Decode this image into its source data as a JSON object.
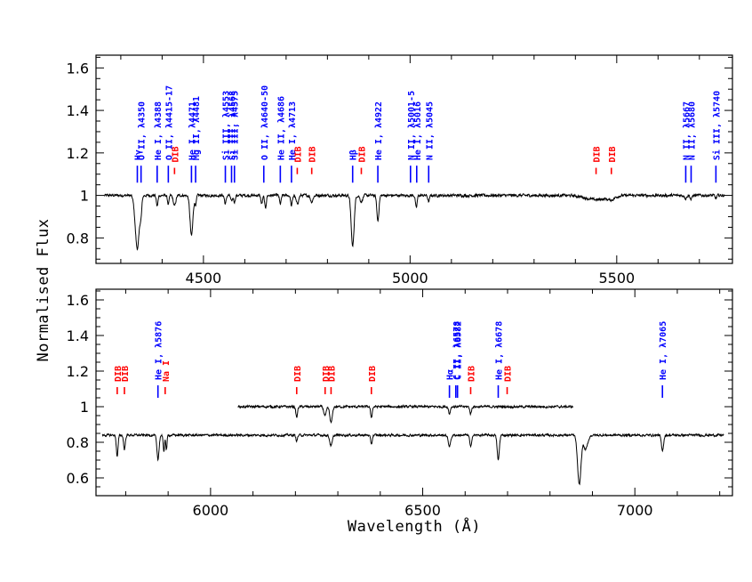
{
  "chart_data": {
    "type": "line",
    "xlabel": "Wavelength (Å)",
    "ylabel": "Normalised Flux",
    "colors": {
      "spectrum": "#000000",
      "stellar_lines": "#0000ff",
      "dib": "#ff0000"
    },
    "panels": [
      {
        "name": "top",
        "xlim": [
          4240,
          5780
        ],
        "ylim": [
          0.68,
          1.66
        ],
        "xticks": [
          4500,
          5000,
          5500
        ],
        "xtick_labels": [
          "4500",
          "5000",
          "5500"
        ],
        "yticks": [
          0.8,
          1,
          1.2,
          1.4,
          1.6
        ],
        "ytick_labels": [
          "0.8",
          "1",
          "1.2",
          "1.4",
          "1.6"
        ],
        "baseline": 1.0,
        "absorption_lines": [
          {
            "x": 4340,
            "depth": 0.25,
            "width": 5
          },
          {
            "x": 4349,
            "depth": 0.06,
            "width": 2
          },
          {
            "x": 4388,
            "depth": 0.05,
            "width": 2
          },
          {
            "x": 4415,
            "depth": 0.04,
            "width": 2
          },
          {
            "x": 4430,
            "depth": 0.05,
            "width": 3
          },
          {
            "x": 4471,
            "depth": 0.19,
            "width": 3.5
          },
          {
            "x": 4481,
            "depth": 0.04,
            "width": 2
          },
          {
            "x": 4553,
            "depth": 0.04,
            "width": 2
          },
          {
            "x": 4568,
            "depth": 0.03,
            "width": 2
          },
          {
            "x": 4575,
            "depth": 0.03,
            "width": 2
          },
          {
            "x": 4641,
            "depth": 0.04,
            "width": 2
          },
          {
            "x": 4650,
            "depth": 0.06,
            "width": 2
          },
          {
            "x": 4686,
            "depth": 0.04,
            "width": 2
          },
          {
            "x": 4713,
            "depth": 0.05,
            "width": 2
          },
          {
            "x": 4727,
            "depth": 0.04,
            "width": 3
          },
          {
            "x": 4762,
            "depth": 0.03,
            "width": 3
          },
          {
            "x": 4861,
            "depth": 0.24,
            "width": 3.5
          },
          {
            "x": 4882,
            "depth": 0.03,
            "width": 3
          },
          {
            "x": 4922,
            "depth": 0.12,
            "width": 2.5
          },
          {
            "x": 5015,
            "depth": 0.06,
            "width": 2
          },
          {
            "x": 5045,
            "depth": 0.03,
            "width": 2
          },
          {
            "x": 5450,
            "depth": 0.02,
            "width": 25
          },
          {
            "x": 5487,
            "depth": 0.015,
            "width": 8
          },
          {
            "x": 5667,
            "depth": 0.015,
            "width": 2
          },
          {
            "x": 5680,
            "depth": 0.02,
            "width": 2
          },
          {
            "x": 5740,
            "depth": 0.015,
            "width": 2
          }
        ]
      },
      {
        "name": "bottom",
        "xlim": [
          5730,
          7230
        ],
        "ylim": [
          0.5,
          1.66
        ],
        "xticks": [
          6000,
          6500,
          7000
        ],
        "xtick_labels": [
          "6000",
          "6500",
          "7000"
        ],
        "yticks": [
          0.6,
          0.8,
          1,
          1.2,
          1.4,
          1.6
        ],
        "ytick_labels": [
          "0.6",
          "0.8",
          "1",
          "1.2",
          "1.4",
          "1.6"
        ],
        "spectra": [
          {
            "name": "offset-high",
            "x_range": [
              6065,
              6855
            ],
            "baseline": 1.0,
            "absorption_lines": [
              {
                "x": 6203,
                "depth": 0.06,
                "width": 2
              },
              {
                "x": 6270,
                "depth": 0.05,
                "width": 3
              },
              {
                "x": 6284,
                "depth": 0.09,
                "width": 3
              },
              {
                "x": 6379,
                "depth": 0.06,
                "width": 2
              },
              {
                "x": 6563,
                "depth": 0.04,
                "width": 2
              },
              {
                "x": 6613,
                "depth": 0.04,
                "width": 2
              }
            ]
          },
          {
            "name": "primary",
            "x_range": [
              5745,
              7210
            ],
            "baseline": 0.84,
            "absorption_lines": [
              {
                "x": 5780,
                "depth": 0.12,
                "width": 2
              },
              {
                "x": 5797,
                "depth": 0.08,
                "width": 2
              },
              {
                "x": 5876,
                "depth": 0.14,
                "width": 2.5
              },
              {
                "x": 5890,
                "depth": 0.1,
                "width": 1.5
              },
              {
                "x": 5896,
                "depth": 0.08,
                "width": 1.5
              },
              {
                "x": 6203,
                "depth": 0.03,
                "width": 2
              },
              {
                "x": 6284,
                "depth": 0.06,
                "width": 3
              },
              {
                "x": 6379,
                "depth": 0.05,
                "width": 2
              },
              {
                "x": 6563,
                "depth": 0.06,
                "width": 3
              },
              {
                "x": 6613,
                "depth": 0.07,
                "width": 2
              },
              {
                "x": 6678,
                "depth": 0.14,
                "width": 2.5
              },
              {
                "x": 6869,
                "depth": 0.28,
                "width": 4
              },
              {
                "x": 6884,
                "depth": 0.08,
                "width": 5
              },
              {
                "x": 7065,
                "depth": 0.09,
                "width": 2.5
              }
            ]
          }
        ]
      }
    ],
    "annotations": [
      {
        "panel": 0,
        "x": 4340,
        "tick": [
          1.14,
          1.06
        ],
        "label": "Hγ",
        "color": "blue"
      },
      {
        "panel": 0,
        "x": 4349,
        "tick": [
          1.14,
          1.06
        ],
        "label": "O II, λ4350",
        "color": "blue"
      },
      {
        "panel": 0,
        "x": 4388,
        "tick": [
          1.14,
          1.06
        ],
        "label": "He I, λ4388",
        "color": "blue"
      },
      {
        "panel": 0,
        "x": 4415,
        "tick": [
          1.14,
          1.06
        ],
        "label": "O II, λ4415-17",
        "color": "blue"
      },
      {
        "panel": 0,
        "x": 4430,
        "tick": [
          1.13,
          1.1
        ],
        "label": "DIB",
        "color": "red"
      },
      {
        "panel": 0,
        "x": 4471,
        "tick": [
          1.14,
          1.06
        ],
        "label": "He I, λ4471",
        "color": "blue"
      },
      {
        "panel": 0,
        "x": 4481,
        "tick": [
          1.14,
          1.06
        ],
        "label": "Mg II, λ4481",
        "color": "blue"
      },
      {
        "panel": 0,
        "x": 4553,
        "tick": [
          1.14,
          1.06
        ],
        "label": "Si III, λ4553",
        "color": "blue"
      },
      {
        "panel": 0,
        "x": 4568,
        "tick": [
          1.14,
          1.06
        ],
        "label": "Si III, λ4568",
        "color": "blue"
      },
      {
        "panel": 0,
        "x": 4575,
        "tick": [
          1.14,
          1.06
        ],
        "label": "Si III, λ4575",
        "color": "blue"
      },
      {
        "panel": 0,
        "x": 4646,
        "tick": [
          1.14,
          1.06
        ],
        "label": "O II, λ4640-50",
        "color": "blue"
      },
      {
        "panel": 0,
        "x": 4686,
        "tick": [
          1.14,
          1.06
        ],
        "label": "He II, λ4686",
        "color": "blue"
      },
      {
        "panel": 0,
        "x": 4713,
        "tick": [
          1.14,
          1.06
        ],
        "label": "He I, λ4713",
        "color": "blue"
      },
      {
        "panel": 0,
        "x": 4727,
        "tick": [
          1.13,
          1.1
        ],
        "label": "DIB",
        "color": "red"
      },
      {
        "panel": 0,
        "x": 4762,
        "tick": [
          1.13,
          1.1
        ],
        "label": "DIB",
        "color": "red"
      },
      {
        "panel": 0,
        "x": 4861,
        "tick": [
          1.14,
          1.06
        ],
        "label": "Hβ",
        "color": "blue"
      },
      {
        "panel": 0,
        "x": 4882,
        "tick": [
          1.13,
          1.1
        ],
        "label": "DIB",
        "color": "red"
      },
      {
        "panel": 0,
        "x": 4922,
        "tick": [
          1.14,
          1.06
        ],
        "label": "He I, λ4922",
        "color": "blue"
      },
      {
        "panel": 0,
        "x": 5001,
        "tick": [
          1.14,
          1.06
        ],
        "label": "N II, λ5001-5",
        "color": "blue"
      },
      {
        "panel": 0,
        "x": 5016,
        "tick": [
          1.14,
          1.06
        ],
        "label": "He I, λ5016",
        "color": "blue"
      },
      {
        "panel": 0,
        "x": 5045,
        "tick": [
          1.14,
          1.06
        ],
        "label": "N II, λ5045",
        "color": "blue"
      },
      {
        "panel": 0,
        "x": 5450,
        "tick": [
          1.13,
          1.1
        ],
        "label": "DIB",
        "color": "red"
      },
      {
        "panel": 0,
        "x": 5487,
        "tick": [
          1.13,
          1.1
        ],
        "label": "DIB",
        "color": "red"
      },
      {
        "panel": 0,
        "x": 5667,
        "tick": [
          1.14,
          1.06
        ],
        "label": "N II, λ5667",
        "color": "blue"
      },
      {
        "panel": 0,
        "x": 5680,
        "tick": [
          1.14,
          1.06
        ],
        "label": "N II, λ5680",
        "color": "blue"
      },
      {
        "panel": 0,
        "x": 5740,
        "tick": [
          1.14,
          1.06
        ],
        "label": "Si III, λ5740",
        "color": "blue"
      },
      {
        "panel": 1,
        "x": 5780,
        "tick": [
          1.11,
          1.07
        ],
        "label": "DIB",
        "color": "red"
      },
      {
        "panel": 1,
        "x": 5797,
        "tick": [
          1.11,
          1.07
        ],
        "label": "DIB",
        "color": "red"
      },
      {
        "panel": 1,
        "x": 5876,
        "tick": [
          1.12,
          1.05
        ],
        "label": "He I, λ5876",
        "color": "blue"
      },
      {
        "panel": 1,
        "x": 5893,
        "tick": [
          1.11,
          1.07
        ],
        "label": "Na I",
        "color": "red"
      },
      {
        "panel": 1,
        "x": 6203,
        "tick": [
          1.11,
          1.07
        ],
        "label": "DIB",
        "color": "red"
      },
      {
        "panel": 1,
        "x": 6270,
        "tick": [
          1.11,
          1.07
        ],
        "label": "DIB",
        "color": "red"
      },
      {
        "panel": 1,
        "x": 6284,
        "tick": [
          1.11,
          1.07
        ],
        "label": "DIB",
        "color": "red"
      },
      {
        "panel": 1,
        "x": 6379,
        "tick": [
          1.11,
          1.07
        ],
        "label": "DIB",
        "color": "red"
      },
      {
        "panel": 1,
        "x": 6563,
        "tick": [
          1.12,
          1.05
        ],
        "label": "Hα",
        "color": "blue"
      },
      {
        "panel": 1,
        "x": 6578,
        "tick": [
          1.12,
          1.05
        ],
        "label": "C II, λ6578",
        "color": "blue"
      },
      {
        "panel": 1,
        "x": 6582,
        "tick": [
          1.12,
          1.05
        ],
        "label": "C II, λ6582",
        "color": "blue"
      },
      {
        "panel": 1,
        "x": 6613,
        "tick": [
          1.11,
          1.07
        ],
        "label": "DIB",
        "color": "red"
      },
      {
        "panel": 1,
        "x": 6678,
        "tick": [
          1.12,
          1.05
        ],
        "label": "He I, λ6678",
        "color": "blue"
      },
      {
        "panel": 1,
        "x": 6699,
        "tick": [
          1.11,
          1.07
        ],
        "label": "DIB",
        "color": "red"
      },
      {
        "panel": 1,
        "x": 7065,
        "tick": [
          1.12,
          1.05
        ],
        "label": "He I, λ7065",
        "color": "blue"
      }
    ]
  }
}
